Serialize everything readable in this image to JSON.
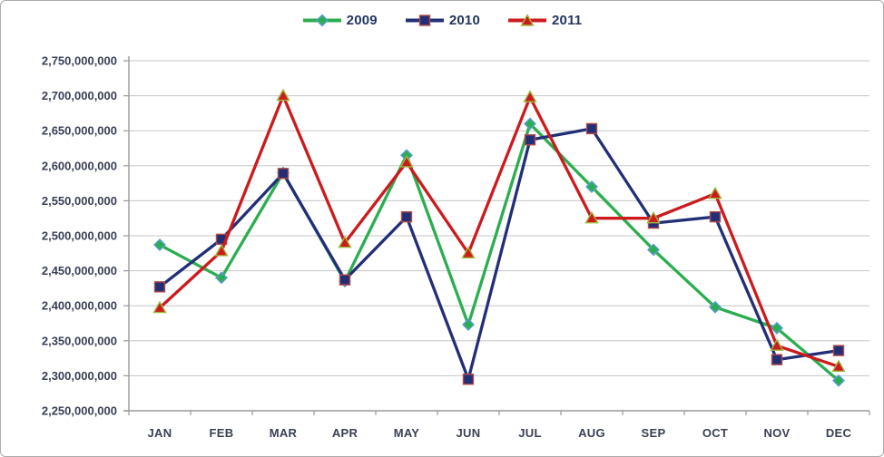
{
  "chart_data": {
    "type": "line",
    "title": "",
    "categories": [
      "JAN",
      "FEB",
      "MAR",
      "APR",
      "MAY",
      "JUN",
      "JUL",
      "AUG",
      "SEP",
      "OCT",
      "NOV",
      "DEC"
    ],
    "series": [
      {
        "name": "2009",
        "color": "#2bae4f",
        "marker": "diamond",
        "marker_border": "#5b9bd5",
        "values": [
          2487000000,
          2440000000,
          2590000000,
          2435000000,
          2615000000,
          2373000000,
          2660000000,
          2570000000,
          2480000000,
          2398000000,
          2368000000,
          2293000000
        ]
      },
      {
        "name": "2010",
        "color": "#222f77",
        "marker": "square",
        "marker_border": "#af4c48",
        "values": [
          2427000000,
          2495000000,
          2589000000,
          2437000000,
          2527000000,
          2295000000,
          2637000000,
          2653000000,
          2518000000,
          2527000000,
          2323000000,
          2336000000
        ]
      },
      {
        "name": "2011",
        "color": "#cc1a1d",
        "marker": "triangle",
        "marker_border": "#9fb83c",
        "values": [
          2397000000,
          2478000000,
          2700000000,
          2490000000,
          2605000000,
          2475000000,
          2698000000,
          2525000000,
          2525000000,
          2560000000,
          2343000000,
          2313000000
        ]
      }
    ],
    "ylim": [
      2250000000,
      2750000000
    ],
    "ytick_step": 50000000,
    "yticks": [
      2750000000,
      2700000000,
      2650000000,
      2600000000,
      2550000000,
      2500000000,
      2450000000,
      2400000000,
      2350000000,
      2300000000,
      2250000000
    ],
    "ytick_labels": [
      "2,750,000,000",
      "2,700,000,000",
      "2,650,000,000",
      "2,600,000,000",
      "2,550,000,000",
      "2,500,000,000",
      "2,450,000,000",
      "2,400,000,000",
      "2,350,000,000",
      "2,300,000,000",
      "2,250,000,000"
    ],
    "xlabel": "",
    "ylabel": "",
    "grid": true,
    "legend_position": "top",
    "colors": {
      "gridline": "#c5c5c5",
      "axis": "#9a9a9a",
      "tick_text": "#3a4054"
    }
  }
}
